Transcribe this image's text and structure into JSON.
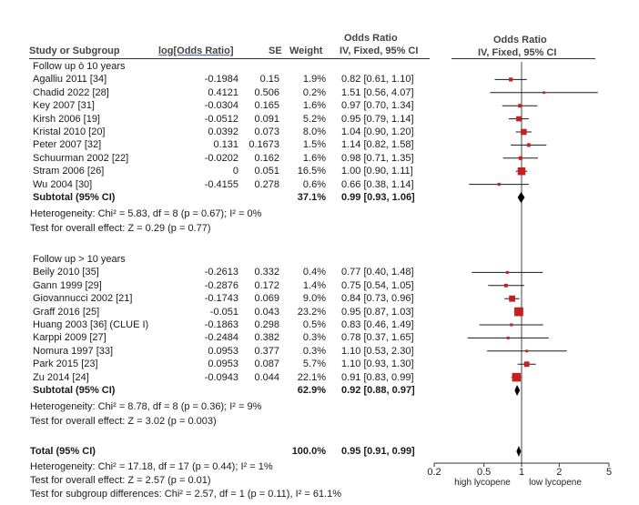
{
  "headers": {
    "study": "Study or Subgroup",
    "log_or": "log[Odds Ratio]",
    "se": "SE",
    "weight": "Weight",
    "or_title": "Odds Ratio",
    "or_sub": "IV, Fixed, 95% CI",
    "plot_title": "Odds Ratio",
    "plot_sub": "IV, Fixed, 95% CI"
  },
  "groups": [
    {
      "title": "Follow up ò 10 years",
      "studies": [
        {
          "name": "Agalliu 2011 [34]",
          "log_or": "-0.1984",
          "se": "0.15",
          "weight": "1.9%",
          "ci": "0.82 [0.61, 1.10]"
        },
        {
          "name": "Chadid 2022 [28]",
          "log_or": "0.4121",
          "se": "0.506",
          "weight": "0.2%",
          "ci": "1.51 [0.56, 4.07]"
        },
        {
          "name": "Key 2007 [31]",
          "log_or": "-0.0304",
          "se": "0.165",
          "weight": "1.6%",
          "ci": "0.97 [0.70, 1.34]"
        },
        {
          "name": "Kirsh 2006 [19]",
          "log_or": "-0.0512",
          "se": "0.091",
          "weight": "5.2%",
          "ci": "0.95 [0.79, 1.14]"
        },
        {
          "name": "Kristal 2010 [20]",
          "log_or": "0.0392",
          "se": "0.073",
          "weight": "8.0%",
          "ci": "1.04 [0.90, 1.20]"
        },
        {
          "name": "Peter 2007 [32]",
          "log_or": "0.131",
          "se": "0.1673",
          "weight": "1.5%",
          "ci": "1.14 [0.82, 1.58]"
        },
        {
          "name": "Schuurman 2002 [22]",
          "log_or": "-0.0202",
          "se": "0.162",
          "weight": "1.6%",
          "ci": "0.98 [0.71, 1.35]"
        },
        {
          "name": "Stram 2006 [26]",
          "log_or": "0",
          "se": "0.051",
          "weight": "16.5%",
          "ci": "1.00 [0.90, 1.11]"
        },
        {
          "name": "Wu 2004 [30]",
          "log_or": "-0.4155",
          "se": "0.278",
          "weight": "0.6%",
          "ci": "0.66 [0.38, 1.14]"
        }
      ],
      "subtotal": {
        "label": "Subtotal (95% CI)",
        "weight": "37.1%",
        "ci": "0.99 [0.93, 1.06]"
      },
      "heterogeneity": "Heterogeneity: Chi² = 5.83, df = 8 (p = 0.67); I² = 0%",
      "overall": "Test for overall effect: Z = 0.29 (p = 0.77)"
    },
    {
      "title": "Follow up > 10 years",
      "studies": [
        {
          "name": "Beily 2010 [35]",
          "log_or": "-0.2613",
          "se": "0.332",
          "weight": "0.4%",
          "ci": "0.77 [0.40, 1.48]"
        },
        {
          "name": "Gann 1999 [29]",
          "log_or": "-0.2876",
          "se": "0.172",
          "weight": "1.4%",
          "ci": "0.75 [0.54, 1.05]"
        },
        {
          "name": "Giovannucci 2002 [21]",
          "log_or": "-0.1743",
          "se": "0.069",
          "weight": "9.0%",
          "ci": "0.84 [0.73, 0.96]"
        },
        {
          "name": "Graff 2016 [25]",
          "log_or": "-0.051",
          "se": "0.043",
          "weight": "23.2%",
          "ci": "0.95 [0.87, 1.03]"
        },
        {
          "name": "Huang 2003 [36] (CLUE I)",
          "log_or": "-0.1863",
          "se": "0.298",
          "weight": "0.5%",
          "ci": "0.83 [0.46, 1.49]"
        },
        {
          "name": "Karppi 2009 [27]",
          "log_or": "-0.2484",
          "se": "0.382",
          "weight": "0.3%",
          "ci": "0.78 [0.37, 1.65]"
        },
        {
          "name": "Nomura 1997 [33]",
          "log_or": "0.0953",
          "se": "0.377",
          "weight": "0.3%",
          "ci": "1.10 [0.53, 2.30]"
        },
        {
          "name": "Park 2015 [23]",
          "log_or": "0.0953",
          "se": "0.087",
          "weight": "5.7%",
          "ci": "1.10 [0.93, 1.30]"
        },
        {
          "name": "Zu 2014 [24]",
          "log_or": "-0.0943",
          "se": "0.044",
          "weight": "22.1%",
          "ci": "0.91 [0.83, 0.99]"
        }
      ],
      "subtotal": {
        "label": "Subtotal (95% CI)",
        "weight": "62.9%",
        "ci": "0.92 [0.88, 0.97]"
      },
      "heterogeneity": "Heterogeneity: Chi² = 8.78, df = 8 (p = 0.36); I² = 9%",
      "overall": "Test for overall effect: Z = 3.02 (p = 0.003)"
    }
  ],
  "total": {
    "label": "Total (95% CI)",
    "weight": "100.0%",
    "ci": "0.95 [0.91, 0.99]",
    "heterogeneity": "Heterogeneity: Chi² = 17.18, df = 17 (p = 0.44); I² = 1%",
    "overall": "Test for overall effect: Z = 2.57 (p = 0.01)",
    "subgroup": "Test for subgroup differences: Chi² = 2.57, df = 1 (p = 0.11), I² = 61.1%"
  },
  "axis": {
    "ticks": [
      "0.2",
      "0.5",
      "1",
      "2",
      "5"
    ],
    "left_label": "high lycopene",
    "right_label": "low lycopene"
  },
  "colors": {
    "point": "#c81e1e",
    "line": "#1a1a1a",
    "diamond": "#000000"
  },
  "chart_data": {
    "type": "forest",
    "scale": "log",
    "xlim": [
      0.2,
      5
    ],
    "x_ticks": [
      0.2,
      0.5,
      1,
      2,
      5
    ],
    "reference_line": 1,
    "studies": [
      {
        "group": "Follow up ò 10 years",
        "name": "Agalliu 2011 [34]",
        "or": 0.82,
        "lo": 0.61,
        "hi": 1.1,
        "weight": 1.9
      },
      {
        "group": "Follow up ò 10 years",
        "name": "Chadid 2022 [28]",
        "or": 1.51,
        "lo": 0.56,
        "hi": 4.07,
        "weight": 0.2
      },
      {
        "group": "Follow up ò 10 years",
        "name": "Key 2007 [31]",
        "or": 0.97,
        "lo": 0.7,
        "hi": 1.34,
        "weight": 1.6
      },
      {
        "group": "Follow up ò 10 years",
        "name": "Kirsh 2006 [19]",
        "or": 0.95,
        "lo": 0.79,
        "hi": 1.14,
        "weight": 5.2
      },
      {
        "group": "Follow up ò 10 years",
        "name": "Kristal 2010 [20]",
        "or": 1.04,
        "lo": 0.9,
        "hi": 1.2,
        "weight": 8.0
      },
      {
        "group": "Follow up ò 10 years",
        "name": "Peter 2007 [32]",
        "or": 1.14,
        "lo": 0.82,
        "hi": 1.58,
        "weight": 1.5
      },
      {
        "group": "Follow up ò 10 years",
        "name": "Schuurman 2002 [22]",
        "or": 0.98,
        "lo": 0.71,
        "hi": 1.35,
        "weight": 1.6
      },
      {
        "group": "Follow up ò 10 years",
        "name": "Stram 2006 [26]",
        "or": 1.0,
        "lo": 0.9,
        "hi": 1.11,
        "weight": 16.5
      },
      {
        "group": "Follow up ò 10 years",
        "name": "Wu 2004 [30]",
        "or": 0.66,
        "lo": 0.38,
        "hi": 1.14,
        "weight": 0.6
      },
      {
        "group": "Follow up > 10 years",
        "name": "Beily 2010 [35]",
        "or": 0.77,
        "lo": 0.4,
        "hi": 1.48,
        "weight": 0.4
      },
      {
        "group": "Follow up > 10 years",
        "name": "Gann 1999 [29]",
        "or": 0.75,
        "lo": 0.54,
        "hi": 1.05,
        "weight": 1.4
      },
      {
        "group": "Follow up > 10 years",
        "name": "Giovannucci 2002 [21]",
        "or": 0.84,
        "lo": 0.73,
        "hi": 0.96,
        "weight": 9.0
      },
      {
        "group": "Follow up > 10 years",
        "name": "Graff 2016 [25]",
        "or": 0.95,
        "lo": 0.87,
        "hi": 1.03,
        "weight": 23.2
      },
      {
        "group": "Follow up > 10 years",
        "name": "Huang 2003 [36] (CLUE I)",
        "or": 0.83,
        "lo": 0.46,
        "hi": 1.49,
        "weight": 0.5
      },
      {
        "group": "Follow up > 10 years",
        "name": "Karppi 2009 [27]",
        "or": 0.78,
        "lo": 0.37,
        "hi": 1.65,
        "weight": 0.3
      },
      {
        "group": "Follow up > 10 years",
        "name": "Nomura 1997 [33]",
        "or": 1.1,
        "lo": 0.53,
        "hi": 2.3,
        "weight": 0.3
      },
      {
        "group": "Follow up > 10 years",
        "name": "Park 2015 [23]",
        "or": 1.1,
        "lo": 0.93,
        "hi": 1.3,
        "weight": 5.7
      },
      {
        "group": "Follow up > 10 years",
        "name": "Zu 2014 [24]",
        "or": 0.91,
        "lo": 0.83,
        "hi": 0.99,
        "weight": 22.1
      }
    ],
    "subtotals": [
      {
        "group": "Follow up ò 10 years",
        "or": 0.99,
        "lo": 0.93,
        "hi": 1.06,
        "weight": 37.1
      },
      {
        "group": "Follow up > 10 years",
        "or": 0.92,
        "lo": 0.88,
        "hi": 0.97,
        "weight": 62.9
      }
    ],
    "total": {
      "or": 0.95,
      "lo": 0.91,
      "hi": 0.99,
      "weight": 100.0
    }
  }
}
